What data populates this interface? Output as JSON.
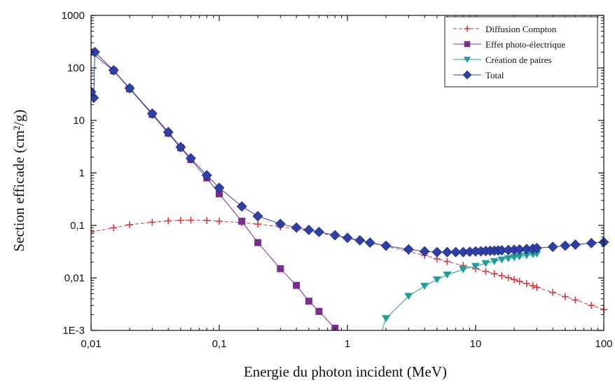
{
  "chart_data": {
    "type": "line",
    "title": "",
    "xlabel": "Energie du photon incident (MeV)",
    "ylabel": "Section efficade (cm²/g)",
    "x_scale": "log",
    "y_scale": "log",
    "xlim": [
      0.01,
      100
    ],
    "ylim": [
      0.001,
      1000
    ],
    "x_ticks": [
      {
        "value": 0.01,
        "label": "0,01"
      },
      {
        "value": 0.1,
        "label": "0,1"
      },
      {
        "value": 1,
        "label": "1"
      },
      {
        "value": 10,
        "label": "10"
      },
      {
        "value": 100,
        "label": "100"
      }
    ],
    "y_ticks": [
      {
        "value": 0.001,
        "label": "1E-3"
      },
      {
        "value": 0.01,
        "label": "0,01"
      },
      {
        "value": 0.1,
        "label": "0,1"
      },
      {
        "value": 1,
        "label": "1"
      },
      {
        "value": 10,
        "label": "10"
      },
      {
        "value": 100,
        "label": "100"
      },
      {
        "value": 1000,
        "label": "1000"
      }
    ],
    "grid": false,
    "legend_position": "top-right",
    "series": [
      {
        "name": "Diffusion Compton",
        "color": "#d9383c",
        "marker": "plus",
        "line_style": "dashed",
        "points": [
          [
            0.01,
            0.075
          ],
          [
            0.015,
            0.09
          ],
          [
            0.02,
            0.103
          ],
          [
            0.03,
            0.115
          ],
          [
            0.04,
            0.122
          ],
          [
            0.05,
            0.125
          ],
          [
            0.06,
            0.126
          ],
          [
            0.08,
            0.124
          ],
          [
            0.1,
            0.12
          ],
          [
            0.15,
            0.113
          ],
          [
            0.2,
            0.106
          ],
          [
            0.3,
            0.094
          ],
          [
            0.4,
            0.085
          ],
          [
            0.5,
            0.078
          ],
          [
            0.6,
            0.072
          ],
          [
            0.8,
            0.063
          ],
          [
            1,
            0.057
          ],
          [
            1.5,
            0.047
          ],
          [
            2,
            0.04
          ],
          [
            3,
            0.032
          ],
          [
            4,
            0.027
          ],
          [
            5,
            0.023
          ],
          [
            6,
            0.0205
          ],
          [
            8,
            0.0172
          ],
          [
            10,
            0.015
          ],
          [
            12,
            0.0133
          ],
          [
            14,
            0.012
          ],
          [
            16,
            0.011
          ],
          [
            18,
            0.0101
          ],
          [
            20,
            0.0093
          ],
          [
            22,
            0.0086
          ],
          [
            25,
            0.0078
          ],
          [
            28,
            0.0071
          ],
          [
            30,
            0.0066
          ],
          [
            40,
            0.0053
          ],
          [
            50,
            0.0044
          ],
          [
            60,
            0.0038
          ],
          [
            80,
            0.003
          ],
          [
            100,
            0.0025
          ]
        ]
      },
      {
        "name": "Effet photo-électrique",
        "color": "#7b2d8e",
        "marker": "square",
        "line_style": "solid",
        "points": [
          [
            0.01,
            200
          ],
          [
            0.015,
            88
          ],
          [
            0.02,
            40
          ],
          [
            0.03,
            13
          ],
          [
            0.04,
            5.7
          ],
          [
            0.05,
            3
          ],
          [
            0.06,
            1.8
          ],
          [
            0.08,
            0.8
          ],
          [
            0.1,
            0.4
          ],
          [
            0.15,
            0.12
          ],
          [
            0.2,
            0.047
          ],
          [
            0.3,
            0.015
          ],
          [
            0.4,
            0.0072
          ],
          [
            0.5,
            0.0036
          ],
          [
            0.6,
            0.0023
          ],
          [
            0.8,
            0.0011
          ],
          [
            1,
            0.0007
          ]
        ]
      },
      {
        "name": "Création de paires",
        "color": "#1f9d9a",
        "marker": "triangle-down",
        "line_style": "solid",
        "points": [
          [
            1.8,
            0.0008
          ],
          [
            2,
            0.0017
          ],
          [
            3,
            0.0045
          ],
          [
            4,
            0.007
          ],
          [
            5,
            0.0093
          ],
          [
            6,
            0.0115
          ],
          [
            8,
            0.0145
          ],
          [
            10,
            0.0168
          ],
          [
            12,
            0.019
          ],
          [
            14,
            0.0207
          ],
          [
            16,
            0.0222
          ],
          [
            18,
            0.0235
          ],
          [
            20,
            0.0246
          ],
          [
            22,
            0.0255
          ],
          [
            25,
            0.0268
          ],
          [
            28,
            0.028
          ],
          [
            30,
            0.0287
          ]
        ]
      },
      {
        "name": "Total",
        "color": "#2e3fa8",
        "marker": "diamond",
        "line_style": "solid",
        "points": [
          [
            0.01,
            35
          ],
          [
            0.0105,
            27
          ],
          [
            0.0107,
            200
          ],
          [
            0.015,
            90
          ],
          [
            0.02,
            41
          ],
          [
            0.03,
            13.5
          ],
          [
            0.04,
            6
          ],
          [
            0.05,
            3.1
          ],
          [
            0.06,
            1.9
          ],
          [
            0.08,
            0.9
          ],
          [
            0.1,
            0.52
          ],
          [
            0.15,
            0.23
          ],
          [
            0.2,
            0.15
          ],
          [
            0.3,
            0.107
          ],
          [
            0.4,
            0.091
          ],
          [
            0.5,
            0.082
          ],
          [
            0.6,
            0.075
          ],
          [
            0.8,
            0.065
          ],
          [
            1,
            0.058
          ],
          [
            1.25,
            0.052
          ],
          [
            1.5,
            0.047
          ],
          [
            2,
            0.041
          ],
          [
            3,
            0.035
          ],
          [
            4,
            0.032
          ],
          [
            5,
            0.031
          ],
          [
            6,
            0.031
          ],
          [
            7,
            0.031
          ],
          [
            8,
            0.031
          ],
          [
            9,
            0.0315
          ],
          [
            10,
            0.032
          ],
          [
            11,
            0.0322
          ],
          [
            12,
            0.0325
          ],
          [
            13,
            0.0328
          ],
          [
            14,
            0.033
          ],
          [
            15,
            0.0333
          ],
          [
            16,
            0.0336
          ],
          [
            18,
            0.034
          ],
          [
            20,
            0.0343
          ],
          [
            22,
            0.0348
          ],
          [
            25,
            0.0355
          ],
          [
            28,
            0.036
          ],
          [
            30,
            0.037
          ],
          [
            40,
            0.039
          ],
          [
            50,
            0.041
          ],
          [
            60,
            0.043
          ],
          [
            80,
            0.046
          ],
          [
            100,
            0.048
          ]
        ]
      }
    ]
  }
}
